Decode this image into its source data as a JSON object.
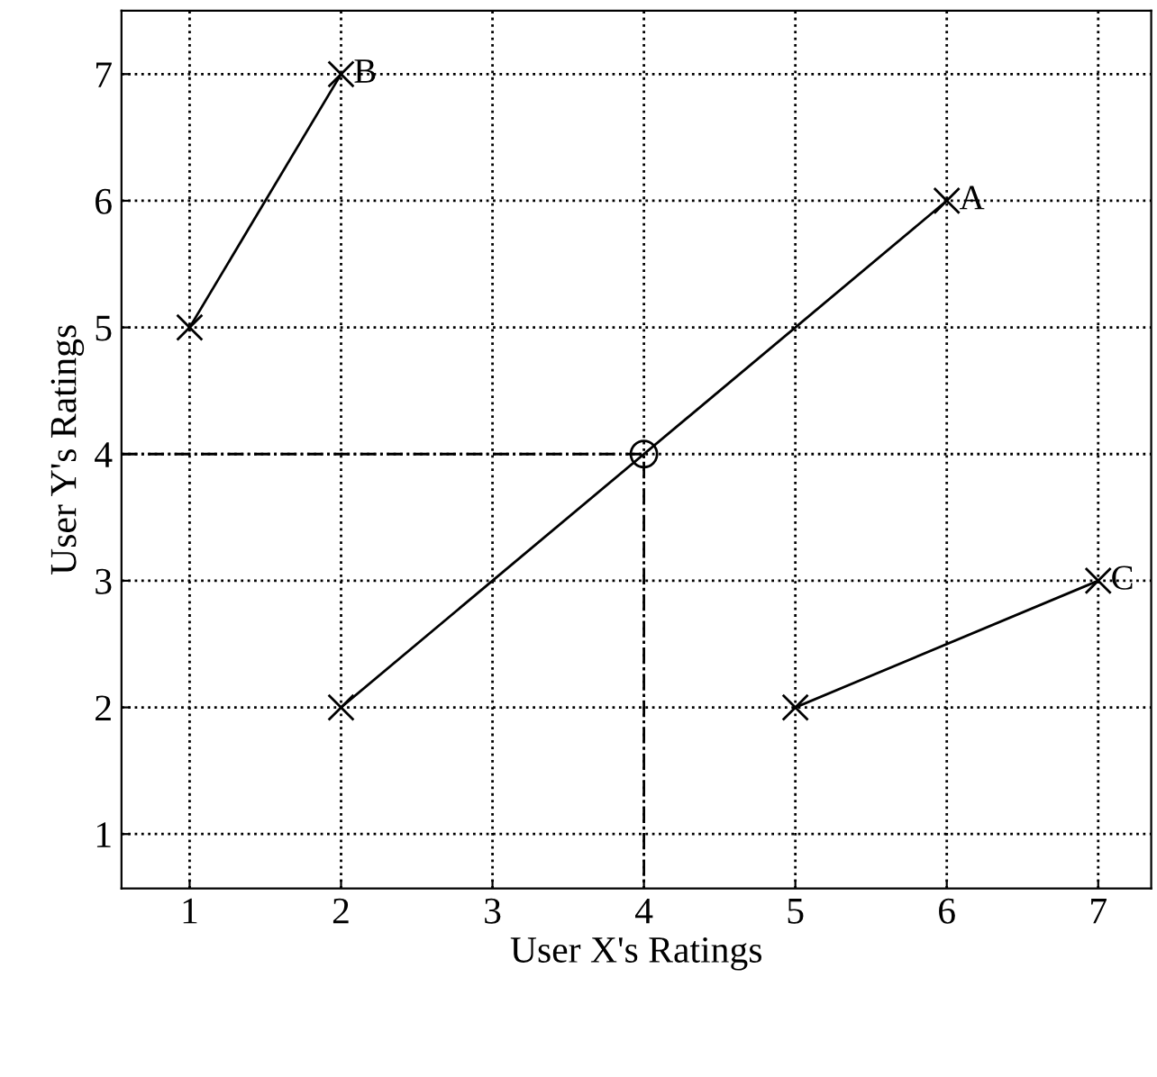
{
  "chart_data": {
    "type": "line",
    "xlabel": "User X's Ratings",
    "ylabel": "User Y's Ratings",
    "xlim": [
      0.55,
      7.35
    ],
    "ylim": [
      0.57,
      7.5
    ],
    "xticks": [
      1,
      2,
      3,
      4,
      5,
      6,
      7
    ],
    "yticks": [
      1,
      2,
      3,
      4,
      5,
      6,
      7
    ],
    "grid": true,
    "series": [
      {
        "x": [
          1,
          2
        ],
        "values": [
          5,
          7
        ],
        "color": "#000000",
        "marker": "cross",
        "line_style": "solid"
      },
      {
        "x": [
          2,
          6
        ],
        "values": [
          2,
          6
        ],
        "color": "#000000",
        "marker": "cross",
        "line_style": "solid"
      },
      {
        "x": [
          5,
          7
        ],
        "values": [
          2,
          3
        ],
        "color": "#000000",
        "marker": "cross",
        "line_style": "solid"
      },
      {
        "x": [
          0.55,
          4,
          4
        ],
        "values": [
          4,
          4,
          0.57
        ],
        "color": "#000000",
        "marker": "none",
        "line_style": "dashed"
      },
      {
        "type": "scatter",
        "x": [
          4
        ],
        "values": [
          4
        ],
        "color": "#000000",
        "marker": "circle"
      }
    ],
    "annotations": [
      {
        "text": "A",
        "x": 6,
        "y": 6
      },
      {
        "text": "B",
        "x": 2,
        "y": 7
      },
      {
        "text": "C",
        "x": 7,
        "y": 3
      }
    ]
  }
}
